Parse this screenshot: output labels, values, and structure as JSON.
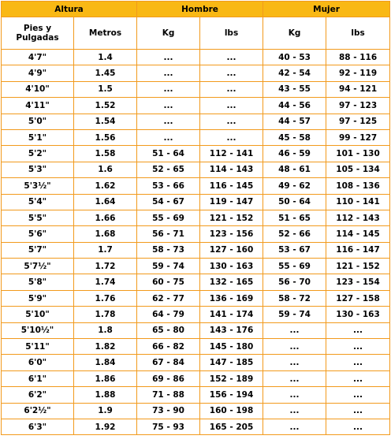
{
  "colors": {
    "border": "#f29a1c",
    "header_fill": "#f9b814",
    "text": "#000000"
  },
  "group_headers": {
    "altura": "Altura",
    "hombre": "Hombre",
    "mujer": "Mujer"
  },
  "sub_headers": {
    "pies_pulgadas": "Pies y Pulgadas",
    "metros": "Metros",
    "hombre_kg": "Kg",
    "hombre_lbs": "lbs",
    "mujer_kg": "Kg",
    "mujer_lbs": "lbs"
  },
  "rows": [
    {
      "pies": "4'7\"",
      "metros": "1.4",
      "h_kg": "...",
      "h_lbs": "...",
      "m_kg": "40 - 53",
      "m_lbs": "88 - 116"
    },
    {
      "pies": "4'9\"",
      "metros": "1.45",
      "h_kg": "...",
      "h_lbs": "...",
      "m_kg": "42 - 54",
      "m_lbs": "92 - 119"
    },
    {
      "pies": "4'10\"",
      "metros": "1.5",
      "h_kg": "...",
      "h_lbs": "...",
      "m_kg": "43 - 55",
      "m_lbs": "94 - 121"
    },
    {
      "pies": "4'11\"",
      "metros": "1.52",
      "h_kg": "...",
      "h_lbs": "...",
      "m_kg": "44 - 56",
      "m_lbs": "97 - 123"
    },
    {
      "pies": "5'0\"",
      "metros": "1.54",
      "h_kg": "...",
      "h_lbs": "...",
      "m_kg": "44 - 57",
      "m_lbs": "97 - 125"
    },
    {
      "pies": "5'1\"",
      "metros": "1.56",
      "h_kg": "...",
      "h_lbs": "...",
      "m_kg": "45 - 58",
      "m_lbs": "99 - 127"
    },
    {
      "pies": "5'2\"",
      "metros": "1.58",
      "h_kg": "51 - 64",
      "h_lbs": "112 - 141",
      "m_kg": "46 - 59",
      "m_lbs": "101 - 130"
    },
    {
      "pies": "5'3\"",
      "metros": "1.6",
      "h_kg": "52 - 65",
      "h_lbs": "114 - 143",
      "m_kg": "48 - 61",
      "m_lbs": "105 - 134"
    },
    {
      "pies": "5'3½\"",
      "metros": "1.62",
      "h_kg": "53 - 66",
      "h_lbs": "116 - 145",
      "m_kg": "49 - 62",
      "m_lbs": "108 - 136"
    },
    {
      "pies": "5'4\"",
      "metros": "1.64",
      "h_kg": "54 - 67",
      "h_lbs": "119 - 147",
      "m_kg": "50 - 64",
      "m_lbs": "110 - 141"
    },
    {
      "pies": "5'5\"",
      "metros": "1.66",
      "h_kg": "55 - 69",
      "h_lbs": "121 - 152",
      "m_kg": "51 - 65",
      "m_lbs": "112 - 143"
    },
    {
      "pies": "5'6\"",
      "metros": "1.68",
      "h_kg": "56 - 71",
      "h_lbs": "123 - 156",
      "m_kg": "52 - 66",
      "m_lbs": "114 - 145"
    },
    {
      "pies": "5'7\"",
      "metros": "1.7",
      "h_kg": "58 - 73",
      "h_lbs": "127 - 160",
      "m_kg": "53 - 67",
      "m_lbs": "116 - 147"
    },
    {
      "pies": "5'7½\"",
      "metros": "1.72",
      "h_kg": "59 - 74",
      "h_lbs": "130 - 163",
      "m_kg": "55 - 69",
      "m_lbs": "121 - 152"
    },
    {
      "pies": "5'8\"",
      "metros": "1.74",
      "h_kg": "60 - 75",
      "h_lbs": "132 - 165",
      "m_kg": "56 - 70",
      "m_lbs": "123 - 154"
    },
    {
      "pies": "5'9\"",
      "metros": "1.76",
      "h_kg": "62 - 77",
      "h_lbs": "136 - 169",
      "m_kg": "58 - 72",
      "m_lbs": "127 - 158"
    },
    {
      "pies": "5'10\"",
      "metros": "1.78",
      "h_kg": "64 - 79",
      "h_lbs": "141 - 174",
      "m_kg": "59 - 74",
      "m_lbs": "130 - 163"
    },
    {
      "pies": "5'10½\"",
      "metros": "1.8",
      "h_kg": "65 - 80",
      "h_lbs": "143 - 176",
      "m_kg": "...",
      "m_lbs": "..."
    },
    {
      "pies": "5'11\"",
      "metros": "1.82",
      "h_kg": "66 - 82",
      "h_lbs": "145 - 180",
      "m_kg": "...",
      "m_lbs": "..."
    },
    {
      "pies": "6'0\"",
      "metros": "1.84",
      "h_kg": "67 - 84",
      "h_lbs": "147 - 185",
      "m_kg": "...",
      "m_lbs": "..."
    },
    {
      "pies": "6'1\"",
      "metros": "1.86",
      "h_kg": "69 - 86",
      "h_lbs": "152 - 189",
      "m_kg": "...",
      "m_lbs": "..."
    },
    {
      "pies": "6'2\"",
      "metros": "1.88",
      "h_kg": "71 - 88",
      "h_lbs": "156 - 194",
      "m_kg": "...",
      "m_lbs": "..."
    },
    {
      "pies": "6'2½\"",
      "metros": "1.9",
      "h_kg": "73 - 90",
      "h_lbs": "160 - 198",
      "m_kg": "...",
      "m_lbs": "..."
    },
    {
      "pies": "6'3\"",
      "metros": "1.92",
      "h_kg": "75 - 93",
      "h_lbs": "165 - 205",
      "m_kg": "...",
      "m_lbs": "..."
    }
  ]
}
